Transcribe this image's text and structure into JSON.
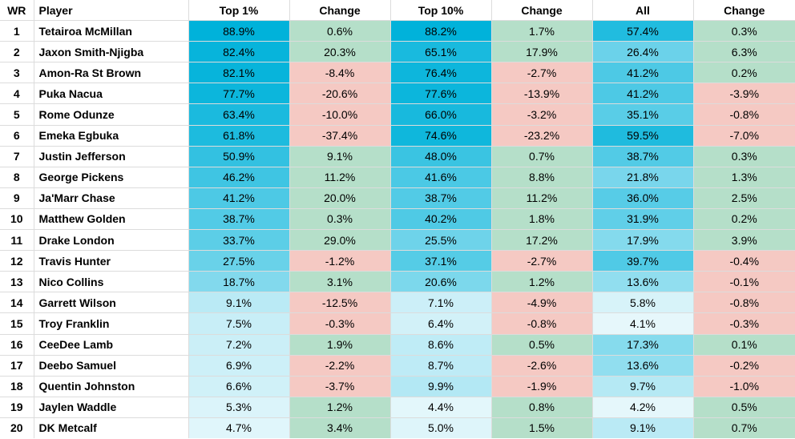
{
  "table": {
    "columns": [
      {
        "key": "rank",
        "label": "WR"
      },
      {
        "key": "player",
        "label": "Player"
      },
      {
        "key": "top1",
        "label": "Top 1%"
      },
      {
        "key": "chg1",
        "label": "Change"
      },
      {
        "key": "top10",
        "label": "Top 10%"
      },
      {
        "key": "chg10",
        "label": "Change"
      },
      {
        "key": "all",
        "label": "All"
      },
      {
        "key": "chgAll",
        "label": "Change"
      }
    ],
    "rows": [
      {
        "rank": "1",
        "player": "Tetairoa McMillan",
        "top1": "88.9%",
        "chg1": "0.6%",
        "top10": "88.2%",
        "chg10": "1.7%",
        "all": "57.4%",
        "chgAll": "0.3%"
      },
      {
        "rank": "2",
        "player": "Jaxon Smith-Njigba",
        "top1": "82.4%",
        "chg1": "20.3%",
        "top10": "65.1%",
        "chg10": "17.9%",
        "all": "26.4%",
        "chgAll": "6.3%"
      },
      {
        "rank": "3",
        "player": "Amon-Ra St Brown",
        "top1": "82.1%",
        "chg1": "-8.4%",
        "top10": "76.4%",
        "chg10": "-2.7%",
        "all": "41.2%",
        "chgAll": "0.2%"
      },
      {
        "rank": "4",
        "player": "Puka Nacua",
        "top1": "77.7%",
        "chg1": "-20.6%",
        "top10": "77.6%",
        "chg10": "-13.9%",
        "all": "41.2%",
        "chgAll": "-3.9%"
      },
      {
        "rank": "5",
        "player": "Rome Odunze",
        "top1": "63.4%",
        "chg1": "-10.0%",
        "top10": "66.0%",
        "chg10": "-3.2%",
        "all": "35.1%",
        "chgAll": "-0.8%"
      },
      {
        "rank": "6",
        "player": "Emeka Egbuka",
        "top1": "61.8%",
        "chg1": "-37.4%",
        "top10": "74.6%",
        "chg10": "-23.2%",
        "all": "59.5%",
        "chgAll": "-7.0%"
      },
      {
        "rank": "7",
        "player": "Justin Jefferson",
        "top1": "50.9%",
        "chg1": "9.1%",
        "top10": "48.0%",
        "chg10": "0.7%",
        "all": "38.7%",
        "chgAll": "0.3%"
      },
      {
        "rank": "8",
        "player": "George Pickens",
        "top1": "46.2%",
        "chg1": "11.2%",
        "top10": "41.6%",
        "chg10": "8.8%",
        "all": "21.8%",
        "chgAll": "1.3%"
      },
      {
        "rank": "9",
        "player": "Ja'Marr Chase",
        "top1": "41.2%",
        "chg1": "20.0%",
        "top10": "38.7%",
        "chg10": "11.2%",
        "all": "36.0%",
        "chgAll": "2.5%"
      },
      {
        "rank": "10",
        "player": "Matthew Golden",
        "top1": "38.7%",
        "chg1": "0.3%",
        "top10": "40.2%",
        "chg10": "1.8%",
        "all": "31.9%",
        "chgAll": "0.2%"
      },
      {
        "rank": "11",
        "player": "Drake London",
        "top1": "33.7%",
        "chg1": "29.0%",
        "top10": "25.5%",
        "chg10": "17.2%",
        "all": "17.9%",
        "chgAll": "3.9%"
      },
      {
        "rank": "12",
        "player": "Travis Hunter",
        "top1": "27.5%",
        "chg1": "-1.2%",
        "top10": "37.1%",
        "chg10": "-2.7%",
        "all": "39.7%",
        "chgAll": "-0.4%"
      },
      {
        "rank": "13",
        "player": "Nico Collins",
        "top1": "18.7%",
        "chg1": "3.1%",
        "top10": "20.6%",
        "chg10": "1.2%",
        "all": "13.6%",
        "chgAll": "-0.1%"
      },
      {
        "rank": "14",
        "player": "Garrett Wilson",
        "top1": "9.1%",
        "chg1": "-12.5%",
        "top10": "7.1%",
        "chg10": "-4.9%",
        "all": "5.8%",
        "chgAll": "-0.8%"
      },
      {
        "rank": "15",
        "player": "Troy Franklin",
        "top1": "7.5%",
        "chg1": "-0.3%",
        "top10": "6.4%",
        "chg10": "-0.8%",
        "all": "4.1%",
        "chgAll": "-0.3%"
      },
      {
        "rank": "16",
        "player": "CeeDee Lamb",
        "top1": "7.2%",
        "chg1": "1.9%",
        "top10": "8.6%",
        "chg10": "0.5%",
        "all": "17.3%",
        "chgAll": "0.1%"
      },
      {
        "rank": "17",
        "player": "Deebo Samuel",
        "top1": "6.9%",
        "chg1": "-2.2%",
        "top10": "8.7%",
        "chg10": "-2.6%",
        "all": "13.6%",
        "chgAll": "-0.2%"
      },
      {
        "rank": "18",
        "player": "Quentin Johnston",
        "top1": "6.6%",
        "chg1": "-3.7%",
        "top10": "9.9%",
        "chg10": "-1.9%",
        "all": "9.7%",
        "chgAll": "-1.0%"
      },
      {
        "rank": "19",
        "player": "Jaylen Waddle",
        "top1": "5.3%",
        "chg1": "1.2%",
        "top10": "4.4%",
        "chg10": "0.8%",
        "all": "4.2%",
        "chgAll": "0.5%"
      },
      {
        "rank": "20",
        "player": "DK Metcalf",
        "top1": "4.7%",
        "chg1": "3.4%",
        "top10": "5.0%",
        "chg10": "1.5%",
        "all": "9.1%",
        "chgAll": "0.7%"
      }
    ]
  },
  "colors": {
    "value_scale_min": "#ffffff",
    "value_scale_max": "#00b2da",
    "positive_change_bg": "#b5dfc9",
    "negative_change_bg": "#f5c9c3",
    "gridline": "#dcdcdc",
    "text": "#000000",
    "header_bg": "#ffffff"
  }
}
